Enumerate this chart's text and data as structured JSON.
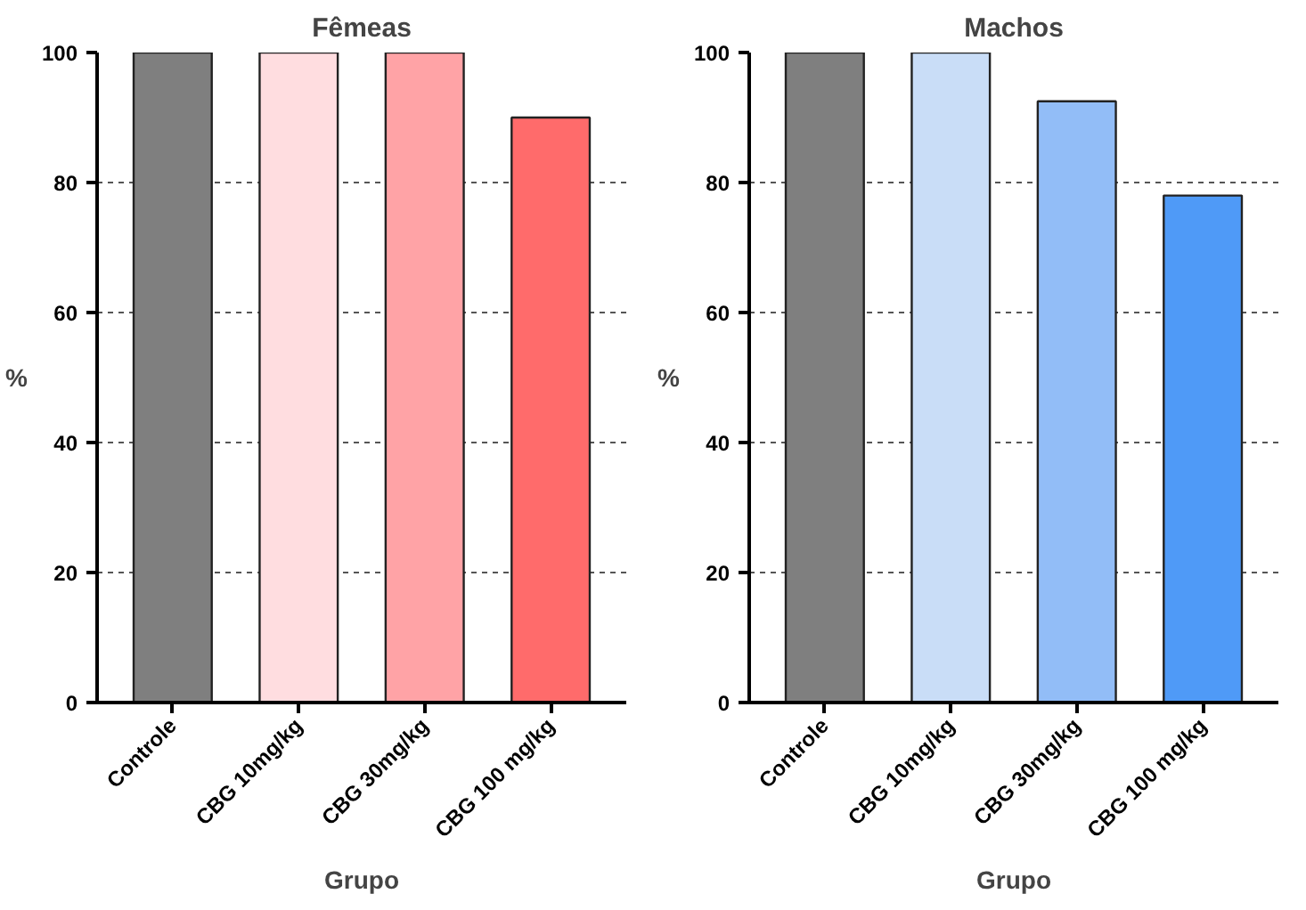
{
  "chart_data": [
    {
      "type": "bar",
      "title": "Fêmeas",
      "xlabel": "Grupo",
      "ylabel": "%",
      "categories": [
        "Controle",
        "CBG 10mg/kg",
        "CBG 30mg/kg",
        "CBG 100 mg/kg"
      ],
      "values": [
        100,
        100,
        100,
        90
      ],
      "colors": [
        "#7f7f7f",
        "#ffdde0",
        "#ffa3a6",
        "#ff6b6b"
      ],
      "ylim": [
        0,
        100
      ],
      "yticks": [
        0,
        20,
        40,
        60,
        80,
        100
      ],
      "grid": "y"
    },
    {
      "type": "bar",
      "title": "Machos",
      "xlabel": "Grupo",
      "ylabel": "%",
      "categories": [
        "Controle",
        "CBG 10mg/kg",
        "CBG 30mg/kg",
        "CBG 100 mg/kg"
      ],
      "values": [
        100,
        100,
        92.5,
        78
      ],
      "colors": [
        "#7f7f7f",
        "#c9ddf7",
        "#92bdf7",
        "#4f9af7"
      ],
      "ylim": [
        0,
        100
      ],
      "yticks": [
        0,
        20,
        40,
        60,
        80,
        100
      ],
      "grid": "y"
    }
  ]
}
